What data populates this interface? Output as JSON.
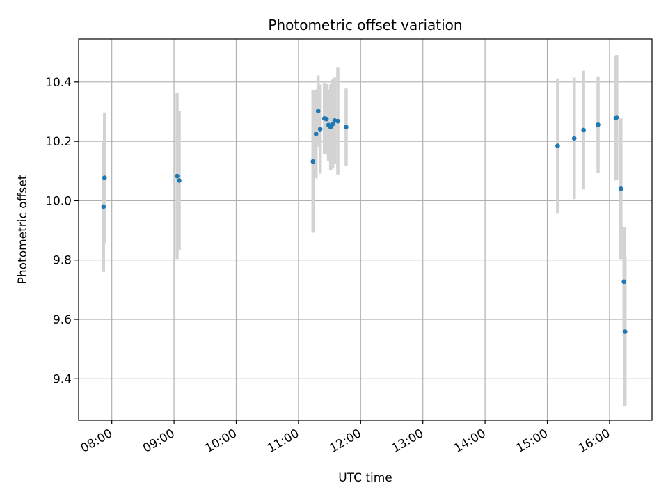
{
  "chart_data": {
    "type": "scatter",
    "title": "Photometric offset variation",
    "xlabel": "UTC time",
    "ylabel": "Photometric offset",
    "x_ticks": [
      "08:00",
      "09:00",
      "10:00",
      "11:00",
      "12:00",
      "13:00",
      "14:00",
      "15:00",
      "16:00"
    ],
    "y_ticks": [
      "9.4",
      "9.6",
      "9.8",
      "10.0",
      "10.2",
      "10.4"
    ],
    "xlim": [
      "07:28",
      "16:41"
    ],
    "ylim": [
      9.26,
      10.545
    ],
    "grid": true,
    "colors": {
      "point": "#1f77b4",
      "errorbar": "#d3d3d3",
      "grid": "#b0b0b0"
    },
    "series": [
      {
        "points": [
          {
            "x": "07:52",
            "y": 9.98,
            "yerr": 0.22
          },
          {
            "x": "07:53",
            "y": 10.077,
            "yerr": 0.22
          },
          {
            "x": "09:03",
            "y": 10.083,
            "yerr": 0.28
          },
          {
            "x": "09:05",
            "y": 10.068,
            "yerr": 0.235
          },
          {
            "x": "11:14",
            "y": 10.132,
            "yerr": 0.24
          },
          {
            "x": "11:17",
            "y": 10.225,
            "yerr": 0.15
          },
          {
            "x": "11:19",
            "y": 10.302,
            "yerr": 0.12
          },
          {
            "x": "11:21",
            "y": 10.241,
            "yerr": 0.15
          },
          {
            "x": "11:25",
            "y": 10.277,
            "yerr": 0.12
          },
          {
            "x": "11:27",
            "y": 10.275,
            "yerr": 0.12
          },
          {
            "x": "11:29",
            "y": 10.255,
            "yerr": 0.12
          },
          {
            "x": "11:31",
            "y": 10.248,
            "yerr": 0.145
          },
          {
            "x": "11:33",
            "y": 10.258,
            "yerr": 0.15
          },
          {
            "x": "11:35",
            "y": 10.27,
            "yerr": 0.145
          },
          {
            "x": "11:38",
            "y": 10.268,
            "yerr": 0.18
          },
          {
            "x": "11:46",
            "y": 10.248,
            "yerr": 0.13
          },
          {
            "x": "15:10",
            "y": 10.185,
            "yerr": 0.227
          },
          {
            "x": "15:26",
            "y": 10.21,
            "yerr": 0.205
          },
          {
            "x": "15:35",
            "y": 10.238,
            "yerr": 0.2
          },
          {
            "x": "15:49",
            "y": 10.256,
            "yerr": 0.163
          },
          {
            "x": "16:06",
            "y": 10.278,
            "yerr": 0.21
          },
          {
            "x": "16:07",
            "y": 10.281,
            "yerr": 0.21
          },
          {
            "x": "16:11",
            "y": 10.04,
            "yerr": 0.237
          },
          {
            "x": "16:14",
            "y": 9.727,
            "yerr": 0.185
          },
          {
            "x": "16:15",
            "y": 9.559,
            "yerr": 0.25
          }
        ]
      }
    ]
  }
}
